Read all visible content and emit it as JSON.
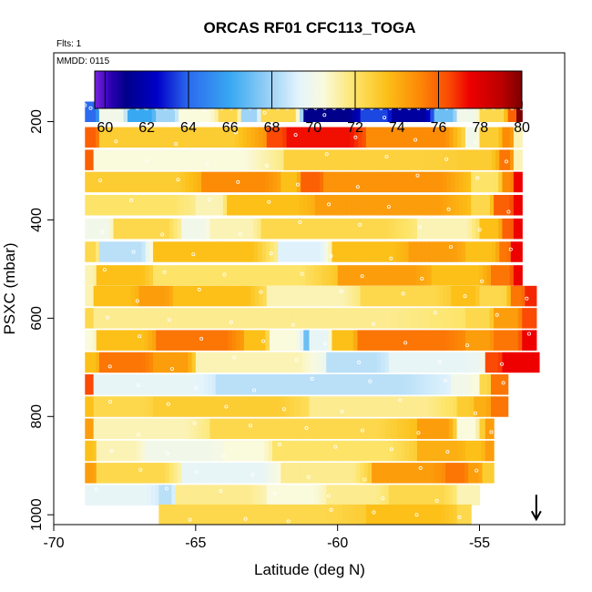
{
  "chart_data": {
    "type": "heatmap",
    "title": "ORCAS RF01 CFC113_TOGA",
    "annotations": {
      "flights": "Flts: 1",
      "date": "MMDD: 0115"
    },
    "xlabel": "Latitude (deg N)",
    "ylabel": "PSXC (mbar)",
    "xlim": [
      -70,
      -52
    ],
    "ylim": [
      1020,
      60
    ],
    "xticks": [
      -70,
      -65,
      -60,
      -55
    ],
    "yticks": [
      200,
      400,
      600,
      800,
      1000
    ],
    "colorbar": {
      "min": 59.5,
      "max": 80,
      "ticks": [
        60,
        62,
        64,
        66,
        68,
        70,
        72,
        74,
        76,
        78,
        80
      ]
    },
    "colormap": [
      [
        59.5,
        "#7a22e0"
      ],
      [
        60.3,
        "#2a00b0"
      ],
      [
        61.0,
        "#00008a"
      ],
      [
        62.5,
        "#0000c8"
      ],
      [
        64.0,
        "#2c6aee"
      ],
      [
        66.0,
        "#38a8f2"
      ],
      [
        68.0,
        "#a0d4f6"
      ],
      [
        69.3,
        "#e4f4fc"
      ],
      [
        70.5,
        "#fafadc"
      ],
      [
        72.0,
        "#fde468"
      ],
      [
        73.5,
        "#fcc018"
      ],
      [
        75.0,
        "#fc8c06"
      ],
      [
        76.5,
        "#fa4a04"
      ],
      [
        77.5,
        "#ee0000"
      ],
      [
        79.0,
        "#bc0000"
      ],
      [
        80.0,
        "#7c0000"
      ]
    ],
    "rows": [
      {
        "p": 180,
        "x0": -68.9,
        "x1": -53.5,
        "segs": [
          [
            -68.9,
            64
          ],
          [
            -68.4,
            70
          ],
          [
            -67.4,
            66
          ],
          [
            -66.4,
            68
          ],
          [
            -65.6,
            70.5
          ],
          [
            -64.2,
            72.5
          ],
          [
            -63.4,
            68
          ],
          [
            -62.7,
            72.5
          ],
          [
            -61.2,
            61
          ],
          [
            -59.2,
            63.5
          ],
          [
            -58.1,
            61.5
          ],
          [
            -56.6,
            67
          ],
          [
            -55.8,
            70
          ],
          [
            -55.0,
            72.5
          ],
          [
            -54.0,
            76
          ],
          [
            -53.7,
            80
          ]
        ]
      },
      {
        "p": 232,
        "x0": -68.9,
        "x1": -53.5,
        "segs": [
          [
            -68.9,
            76
          ],
          [
            -68.4,
            73
          ],
          [
            -62.5,
            76.5
          ],
          [
            -61.8,
            77.3
          ],
          [
            -59.0,
            75
          ],
          [
            -55.5,
            70
          ],
          [
            -55.0,
            73
          ],
          [
            -54.2,
            75
          ],
          [
            -53.8,
            71
          ]
        ]
      },
      {
        "p": 278,
        "x0": -68.9,
        "x1": -53.5,
        "segs": [
          [
            -68.9,
            76
          ],
          [
            -68.6,
            70.5
          ],
          [
            -61.9,
            72.8
          ],
          [
            -55.8,
            73
          ],
          [
            -54.3,
            75.5
          ],
          [
            -53.8,
            71
          ]
        ]
      },
      {
        "p": 323,
        "x0": -68.9,
        "x1": -53.5,
        "segs": [
          [
            -68.9,
            73
          ],
          [
            -64.8,
            75
          ],
          [
            -62.0,
            73.5
          ],
          [
            -61.3,
            76
          ],
          [
            -60.5,
            74.8
          ],
          [
            -55.3,
            72
          ],
          [
            -54.2,
            75
          ],
          [
            -53.8,
            77.5
          ]
        ]
      },
      {
        "p": 370,
        "x0": -68.9,
        "x1": -53.5,
        "segs": [
          [
            -68.9,
            72
          ],
          [
            -65.0,
            71
          ],
          [
            -63.9,
            73.5
          ],
          [
            -60.8,
            74.5
          ],
          [
            -55.3,
            72.5
          ],
          [
            -54.5,
            76
          ],
          [
            -53.8,
            77.5
          ]
        ]
      },
      {
        "p": 418,
        "x0": -68.9,
        "x1": -53.5,
        "segs": [
          [
            -68.9,
            70
          ],
          [
            -67.9,
            72.5
          ],
          [
            -65.5,
            70
          ],
          [
            -64.5,
            71
          ],
          [
            -62.7,
            72.5
          ],
          [
            -57.2,
            71
          ],
          [
            -55.0,
            73.5
          ],
          [
            -54.2,
            76
          ],
          [
            -53.8,
            77.5
          ]
        ]
      },
      {
        "p": 465,
        "x0": -68.9,
        "x1": -53.5,
        "segs": [
          [
            -68.9,
            72.5
          ],
          [
            -68.4,
            68.5
          ],
          [
            -66.5,
            73.5
          ],
          [
            -62.1,
            69.2
          ],
          [
            -60.2,
            73.5
          ],
          [
            -57.5,
            74.5
          ],
          [
            -55.5,
            73.5
          ],
          [
            -54.3,
            75.5
          ],
          [
            -53.9,
            77.5
          ]
        ]
      },
      {
        "p": 513,
        "x0": -68.9,
        "x1": -53.5,
        "segs": [
          [
            -68.9,
            71
          ],
          [
            -68.5,
            73.5
          ],
          [
            -66.5,
            72
          ],
          [
            -60.0,
            74.5
          ],
          [
            -56.7,
            73.5
          ],
          [
            -54.6,
            75.5
          ],
          [
            -53.8,
            77.5
          ]
        ]
      },
      {
        "p": 555,
        "x0": -68.9,
        "x1": -53.0,
        "segs": [
          [
            -68.9,
            71
          ],
          [
            -68.6,
            73.5
          ],
          [
            -67.0,
            74.5
          ],
          [
            -65.8,
            73.5
          ],
          [
            -62.5,
            71
          ],
          [
            -59.2,
            72.5
          ],
          [
            -56.0,
            73.5
          ],
          [
            -55.0,
            72.5
          ],
          [
            -53.9,
            75.5
          ],
          [
            -53.4,
            77
          ]
        ]
      },
      {
        "p": 600,
        "x0": -68.9,
        "x1": -53.0,
        "segs": [
          [
            -68.9,
            72.5
          ],
          [
            -68.6,
            71.5
          ],
          [
            -55.5,
            72.5
          ],
          [
            -54.5,
            74.5
          ],
          [
            -53.5,
            76.5
          ]
        ]
      },
      {
        "p": 645,
        "x0": -68.9,
        "x1": -53.0,
        "segs": [
          [
            -68.9,
            70.5
          ],
          [
            -68.5,
            73.5
          ],
          [
            -66.4,
            75.5
          ],
          [
            -63.3,
            73.5
          ],
          [
            -62.4,
            70.5
          ],
          [
            -61.2,
            67
          ],
          [
            -61.0,
            69.5
          ],
          [
            -60.2,
            73.5
          ],
          [
            -59.3,
            75.5
          ],
          [
            -55.5,
            74.5
          ],
          [
            -54.5,
            75.5
          ],
          [
            -53.5,
            77.5
          ]
        ]
      },
      {
        "p": 690,
        "x0": -68.9,
        "x1": -52.9,
        "segs": [
          [
            -68.9,
            73.5
          ],
          [
            -68.4,
            75.5
          ],
          [
            -66.5,
            74.5
          ],
          [
            -65.0,
            71
          ],
          [
            -60.4,
            68.5
          ],
          [
            -58.2,
            69.5
          ],
          [
            -55.0,
            70
          ],
          [
            -54.8,
            76.5
          ],
          [
            -54.2,
            77.5
          ]
        ]
      },
      {
        "p": 735,
        "x0": -68.9,
        "x1": -54.0,
        "segs": [
          [
            -68.9,
            76.5
          ],
          [
            -68.6,
            69.5
          ],
          [
            -64.3,
            68.5
          ],
          [
            -56.0,
            70
          ],
          [
            -55.3,
            70.5
          ],
          [
            -55.0,
            72.5
          ],
          [
            -54.6,
            75.5
          ]
        ]
      },
      {
        "p": 780,
        "x0": -68.9,
        "x1": -54.0,
        "segs": [
          [
            -68.9,
            73.5
          ],
          [
            -68.6,
            72.5
          ],
          [
            -66.5,
            73
          ],
          [
            -61.0,
            71.5
          ],
          [
            -55.8,
            73
          ],
          [
            -55.2,
            74
          ],
          [
            -54.6,
            75.5
          ]
        ]
      },
      {
        "p": 825,
        "x0": -68.9,
        "x1": -54.5,
        "segs": [
          [
            -68.9,
            74.5
          ],
          [
            -68.6,
            71
          ],
          [
            -64.5,
            72.5
          ],
          [
            -57.2,
            74.5
          ],
          [
            -55.8,
            70.5
          ],
          [
            -55.0,
            73
          ],
          [
            -54.8,
            74.5
          ]
        ]
      },
      {
        "p": 870,
        "x0": -68.9,
        "x1": -54.5,
        "segs": [
          [
            -68.9,
            73.5
          ],
          [
            -68.5,
            71
          ],
          [
            -66.8,
            70
          ],
          [
            -64.0,
            70.5
          ],
          [
            -62.3,
            72
          ],
          [
            -57.2,
            74
          ],
          [
            -55.5,
            73.5
          ],
          [
            -54.8,
            74.5
          ]
        ]
      },
      {
        "p": 915,
        "x0": -68.9,
        "x1": -54.5,
        "segs": [
          [
            -68.9,
            74.5
          ],
          [
            -68.5,
            72.5
          ],
          [
            -65.5,
            69.5
          ],
          [
            -62.0,
            71.5
          ],
          [
            -58.8,
            74.5
          ],
          [
            -56.2,
            75.5
          ],
          [
            -55.4,
            74.5
          ],
          [
            -54.9,
            73
          ]
        ]
      },
      {
        "p": 960,
        "x0": -68.9,
        "x1": -55.0,
        "segs": [
          [
            -68.9,
            69.5
          ],
          [
            -66.3,
            68.5
          ],
          [
            -65.7,
            71.5
          ],
          [
            -62.5,
            70.5
          ],
          [
            -60.4,
            71.5
          ],
          [
            -58.2,
            72.5
          ],
          [
            -55.8,
            71
          ]
        ]
      },
      {
        "p": 1000,
        "x0": -66.3,
        "x1": -55.3,
        "segs": [
          [
            -66.3,
            72.5
          ],
          [
            -59.0,
            73.5
          ],
          [
            -55.8,
            72.5
          ]
        ]
      }
    ],
    "arrow": {
      "lat": -53.0,
      "p": 1000,
      "direction": "down"
    }
  }
}
